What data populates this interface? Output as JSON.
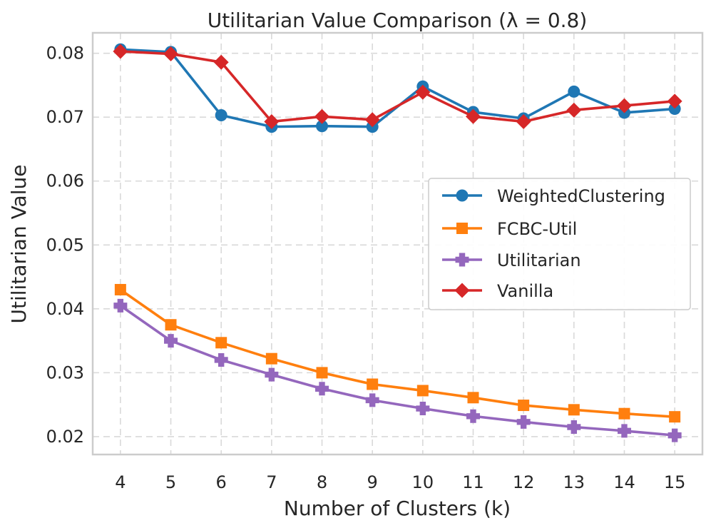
{
  "chart_data": {
    "type": "line",
    "title": "Utilitarian Value Comparison (λ = 0.8)",
    "xlabel": "Number of Clusters (k)",
    "ylabel": "Utilitarian Value",
    "x": [
      4,
      5,
      6,
      7,
      8,
      9,
      10,
      11,
      12,
      13,
      14,
      15
    ],
    "x_tick_labels": [
      "4",
      "5",
      "6",
      "7",
      "8",
      "9",
      "10",
      "11",
      "12",
      "13",
      "14",
      "15"
    ],
    "y_ticks": [
      0.02,
      0.03,
      0.04,
      0.05,
      0.06,
      0.07,
      0.08
    ],
    "y_tick_labels": [
      "0.02",
      "0.03",
      "0.04",
      "0.05",
      "0.06",
      "0.07",
      "0.08"
    ],
    "xlim": [
      3.45,
      15.55
    ],
    "ylim": [
      0.0172,
      0.0832
    ],
    "grid": true,
    "legend_position": "center-right",
    "series": [
      {
        "name": "WeightedClustering",
        "color": "#1f77b4",
        "marker": "circle",
        "values": [
          0.0806,
          0.0802,
          0.0703,
          0.0685,
          0.0686,
          0.0685,
          0.0748,
          0.0708,
          0.0698,
          0.074,
          0.0707,
          0.0713
        ]
      },
      {
        "name": "FCBC-Util",
        "color": "#ff7f0e",
        "marker": "square",
        "values": [
          0.043,
          0.0375,
          0.0347,
          0.0322,
          0.03,
          0.0282,
          0.0272,
          0.0261,
          0.0249,
          0.0242,
          0.0236,
          0.0231
        ]
      },
      {
        "name": "Utilitarian",
        "color": "#9467bd",
        "marker": "plus",
        "values": [
          0.0405,
          0.035,
          0.032,
          0.0297,
          0.0275,
          0.0257,
          0.0244,
          0.0232,
          0.0223,
          0.0215,
          0.0209,
          0.0202
        ]
      },
      {
        "name": "Vanilla",
        "color": "#d62728",
        "marker": "diamond",
        "values": [
          0.0803,
          0.0799,
          0.0786,
          0.0693,
          0.0701,
          0.0696,
          0.0739,
          0.0701,
          0.0693,
          0.0711,
          0.0718,
          0.0725
        ]
      }
    ]
  }
}
